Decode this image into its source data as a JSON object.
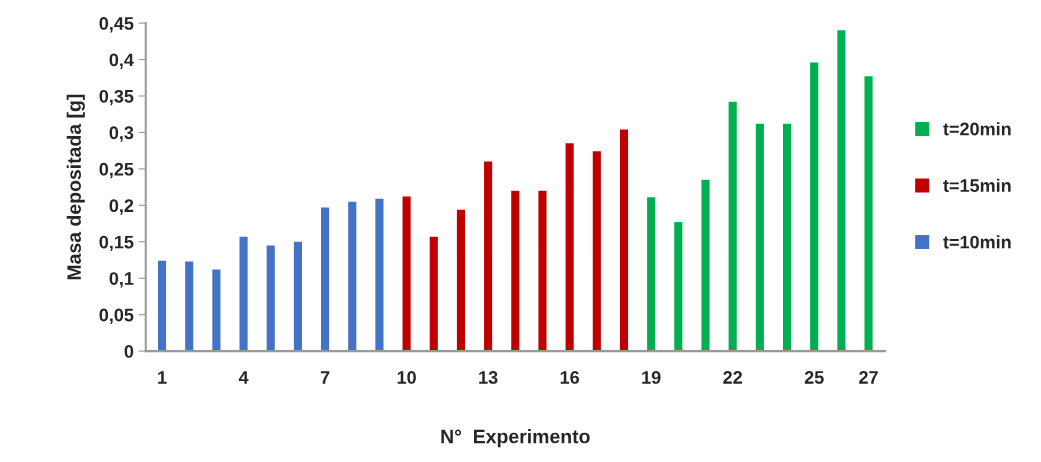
{
  "chart_data": {
    "type": "bar",
    "xlabel": "N°  Experimento",
    "ylabel": "Masa depositada [g]",
    "categories": [
      "1",
      null,
      null,
      "4",
      null,
      null,
      "7",
      null,
      null,
      "10",
      null,
      null,
      "13",
      null,
      null,
      "16",
      null,
      null,
      "19",
      null,
      null,
      "22",
      null,
      null,
      "25",
      null,
      "27"
    ],
    "series": [
      {
        "name": "t=10min",
        "color": "#4472c4",
        "values": [
          0.125,
          0.124,
          0.113,
          0.158,
          0.146,
          0.151,
          0.198,
          0.206,
          0.21,
          null,
          null,
          null,
          null,
          null,
          null,
          null,
          null,
          null,
          null,
          null,
          null,
          null,
          null,
          null,
          null,
          null,
          null
        ]
      },
      {
        "name": "t=15min",
        "color": "#c00000",
        "values": [
          null,
          null,
          null,
          null,
          null,
          null,
          null,
          null,
          null,
          0.213,
          0.158,
          0.195,
          0.261,
          0.221,
          0.221,
          0.286,
          0.275,
          0.305,
          null,
          null,
          null,
          null,
          null,
          null,
          null,
          null,
          null
        ]
      },
      {
        "name": "t=20min",
        "color": "#00b050",
        "values": [
          null,
          null,
          null,
          null,
          null,
          null,
          null,
          null,
          null,
          null,
          null,
          null,
          null,
          null,
          null,
          null,
          null,
          null,
          0.212,
          0.178,
          0.236,
          0.343,
          0.313,
          0.313,
          0.397,
          0.441,
          0.378
        ]
      }
    ],
    "ylim": [
      0,
      0.45
    ],
    "yticks": [
      0,
      {
        "value": 0.05,
        "label": "0,05"
      },
      {
        "value": 0.1,
        "label": "0,1"
      },
      {
        "value": 0.15,
        "label": "0,15"
      },
      {
        "value": 0.2,
        "label": "0,2"
      },
      {
        "value": 0.25,
        "label": "0,25"
      },
      {
        "value": 0.3,
        "label": "0,3"
      },
      {
        "value": 0.35,
        "label": "0,35"
      },
      {
        "value": 0.4,
        "label": "0,4"
      },
      {
        "value": 0.45,
        "label": "0,45"
      }
    ],
    "grid": false,
    "legend": "right"
  }
}
